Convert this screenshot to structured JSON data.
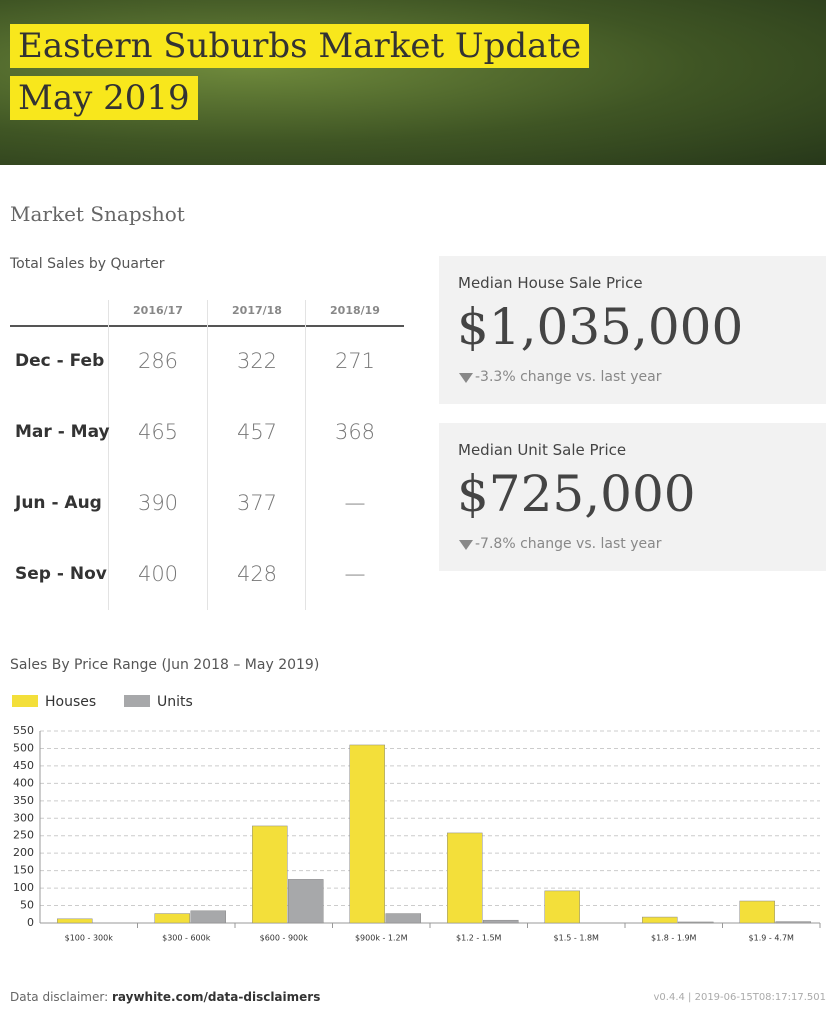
{
  "header": {
    "title_line1": "Eastern Suburbs Market Update",
    "title_line2": "May 2019"
  },
  "snapshot": {
    "title": "Market Snapshot"
  },
  "table": {
    "title": "Total Sales by Quarter",
    "columns": [
      "2016/17",
      "2017/18",
      "2018/19"
    ],
    "rows": [
      {
        "label": "Dec - Feb",
        "values": [
          "286",
          "322",
          "271"
        ]
      },
      {
        "label": "Mar - May",
        "values": [
          "465",
          "457",
          "368"
        ]
      },
      {
        "label": "Jun - Aug",
        "values": [
          "390",
          "377",
          "—"
        ]
      },
      {
        "label": "Sep - Nov",
        "values": [
          "400",
          "428",
          "—"
        ]
      }
    ]
  },
  "cards": [
    {
      "label": "Median House Sale Price",
      "price": "$1,035,000",
      "change": "-3.3% change vs. last year"
    },
    {
      "label": "Median Unit Sale Price",
      "price": "$725,000",
      "change": "-7.8% change vs. last year"
    }
  ],
  "chart_data": {
    "type": "bar",
    "title": "Sales By Price Range (Jun 2018 – May 2019)",
    "categories": [
      "$100 - 300k",
      "$300 - 600k",
      "$600 - 900k",
      "$900k - 1.2M",
      "$1.2 - 1.5M",
      "$1.5 - 1.8M",
      "$1.8 - 1.9M",
      "$1.9 - 4.7M"
    ],
    "series": [
      {
        "name": "Houses",
        "color": "#f3df3a",
        "values": [
          12,
          27,
          278,
          510,
          258,
          92,
          17,
          63
        ]
      },
      {
        "name": "Units",
        "color": "#a7a8aa",
        "values": [
          0,
          35,
          125,
          27,
          8,
          0,
          3,
          4
        ]
      }
    ],
    "ylim": [
      0,
      550
    ],
    "yticks": [
      0,
      50,
      100,
      150,
      200,
      250,
      300,
      350,
      400,
      450,
      500,
      550
    ],
    "grid": true,
    "legend": "top-left"
  },
  "footer": {
    "disclaimer_label": "Data disclaimer:",
    "link": "raywhite.com/data-disclaimers",
    "version": "v0.4.4 | 2019-06-15T08:17:17.501"
  }
}
